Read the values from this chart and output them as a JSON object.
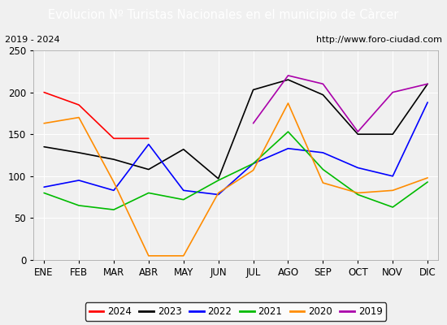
{
  "title": "Evolucion Nº Turistas Nacionales en el municipio de Càrcer",
  "subtitle_left": "2019 - 2024",
  "subtitle_right": "http://www.foro-ciudad.com",
  "months": [
    "ENE",
    "FEB",
    "MAR",
    "ABR",
    "MAY",
    "JUN",
    "JUL",
    "AGO",
    "SEP",
    "OCT",
    "NOV",
    "DIC"
  ],
  "ylim": [
    0,
    250
  ],
  "yticks": [
    0,
    50,
    100,
    150,
    200,
    250
  ],
  "series": {
    "2024": {
      "color": "#ff0000",
      "values": [
        200,
        185,
        145,
        145,
        null,
        null,
        null,
        null,
        null,
        null,
        null,
        null
      ]
    },
    "2023": {
      "color": "#000000",
      "values": [
        135,
        128,
        120,
        108,
        132,
        97,
        203,
        215,
        197,
        150,
        150,
        210
      ]
    },
    "2022": {
      "color": "#0000ff",
      "values": [
        87,
        95,
        83,
        138,
        83,
        78,
        115,
        133,
        128,
        110,
        100,
        188
      ]
    },
    "2021": {
      "color": "#00bb00",
      "values": [
        80,
        65,
        60,
        80,
        72,
        95,
        115,
        153,
        108,
        78,
        63,
        93
      ]
    },
    "2020": {
      "color": "#ff8c00",
      "values": [
        163,
        170,
        93,
        5,
        5,
        80,
        107,
        187,
        92,
        80,
        83,
        98
      ]
    },
    "2019": {
      "color": "#aa00aa",
      "values": [
        null,
        null,
        null,
        null,
        null,
        null,
        163,
        220,
        210,
        153,
        200,
        210
      ]
    }
  },
  "background_color": "#f0f0f0",
  "plot_bg": "#f0f0f0",
  "title_bg": "#4472c4",
  "title_color": "#ffffff",
  "grid_color": "#ffffff",
  "title_fontsize": 10.5,
  "axis_fontsize": 8.5,
  "legend_fontsize": 8.5
}
